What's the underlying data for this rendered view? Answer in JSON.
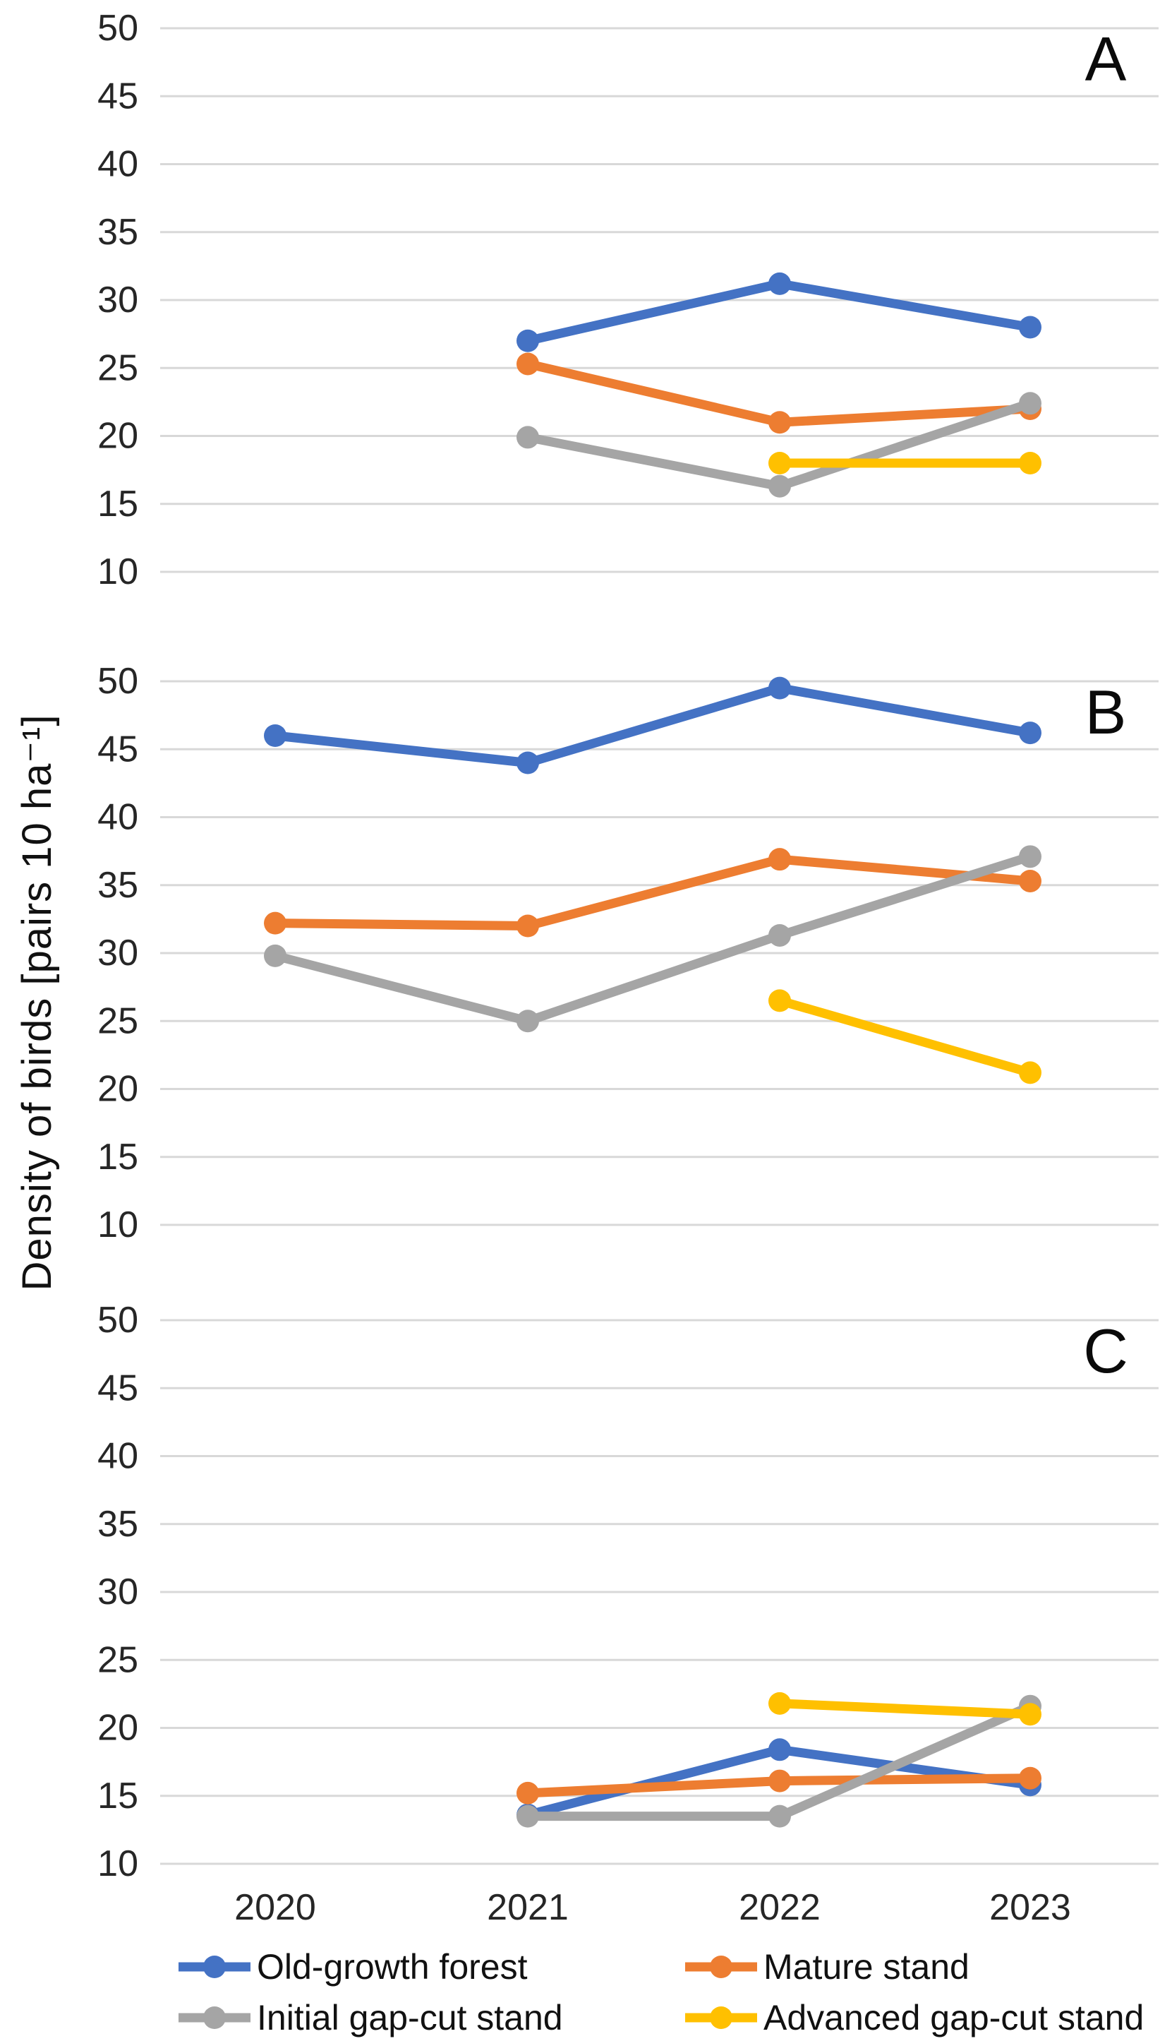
{
  "figure": {
    "y_axis_title": "Density of birds [pairs 10 ha⁻¹]",
    "x_categories": [
      "2020",
      "2021",
      "2022",
      "2023"
    ]
  },
  "chart_data": [
    {
      "type": "line",
      "panel_label": "A",
      "ylim": [
        10,
        50
      ],
      "yticks": [
        10,
        15,
        20,
        25,
        30,
        35,
        40,
        45,
        50
      ],
      "grid": true,
      "x": [
        "2020",
        "2021",
        "2022",
        "2023"
      ],
      "series": [
        {
          "name": "Old-growth forest",
          "color": "#4472C4",
          "values": [
            null,
            27.0,
            31.2,
            28.0
          ]
        },
        {
          "name": "Mature stand",
          "color": "#ED7D31",
          "values": [
            null,
            25.3,
            21.0,
            22.0
          ]
        },
        {
          "name": "Initial gap-cut stand",
          "color": "#A5A5A5",
          "values": [
            null,
            19.9,
            16.3,
            22.4
          ]
        },
        {
          "name": "Advanced gap-cut stand",
          "color": "#FFC000",
          "values": [
            null,
            null,
            18.0,
            18.0
          ]
        }
      ]
    },
    {
      "type": "line",
      "panel_label": "B",
      "ylim": [
        10,
        50
      ],
      "yticks": [
        10,
        15,
        20,
        25,
        30,
        35,
        40,
        45,
        50
      ],
      "grid": true,
      "x": [
        "2020",
        "2021",
        "2022",
        "2023"
      ],
      "series": [
        {
          "name": "Old-growth forest",
          "color": "#4472C4",
          "values": [
            46.0,
            44.0,
            49.5,
            46.2
          ]
        },
        {
          "name": "Mature stand",
          "color": "#ED7D31",
          "values": [
            32.2,
            32.0,
            36.9,
            35.3
          ]
        },
        {
          "name": "Initial gap-cut stand",
          "color": "#A5A5A5",
          "values": [
            29.8,
            25.0,
            31.3,
            37.1
          ]
        },
        {
          "name": "Advanced gap-cut stand",
          "color": "#FFC000",
          "values": [
            null,
            null,
            26.5,
            21.2
          ]
        }
      ]
    },
    {
      "type": "line",
      "panel_label": "C",
      "ylim": [
        10,
        50
      ],
      "yticks": [
        10,
        15,
        20,
        25,
        30,
        35,
        40,
        45,
        50
      ],
      "grid": true,
      "x": [
        "2020",
        "2021",
        "2022",
        "2023"
      ],
      "series": [
        {
          "name": "Old-growth forest",
          "color": "#4472C4",
          "values": [
            null,
            13.6,
            18.4,
            15.8
          ]
        },
        {
          "name": "Mature stand",
          "color": "#ED7D31",
          "values": [
            null,
            15.2,
            16.1,
            16.3
          ]
        },
        {
          "name": "Initial gap-cut stand",
          "color": "#A5A5A5",
          "values": [
            null,
            13.5,
            13.5,
            21.6
          ]
        },
        {
          "name": "Advanced gap-cut stand",
          "color": "#FFC000",
          "values": [
            null,
            null,
            21.8,
            21.0
          ]
        }
      ]
    }
  ],
  "legend": {
    "items": [
      {
        "label": "Old-growth forest",
        "color": "#4472C4"
      },
      {
        "label": "Mature stand",
        "color": "#ED7D31"
      },
      {
        "label": "Initial gap-cut stand",
        "color": "#A5A5A5"
      },
      {
        "label": "Advanced gap-cut stand",
        "color": "#FFC000"
      }
    ]
  },
  "colors": {
    "gridline": "#D8D8D8",
    "tick_text": "#262626",
    "panel_letter": "#0a0a0a"
  }
}
